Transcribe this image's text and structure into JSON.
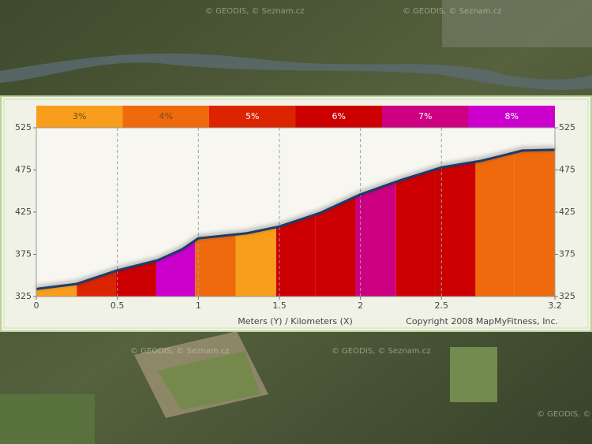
{
  "chart_data": {
    "type": "elevation-profile",
    "x": [
      0,
      0.25,
      0.5,
      0.75,
      0.9,
      1.0,
      1.15,
      1.3,
      1.5,
      1.75,
      2.0,
      2.25,
      2.5,
      2.75,
      3.0,
      3.2
    ],
    "values": [
      334,
      340,
      356,
      368,
      381,
      394,
      397,
      400,
      408,
      424,
      446,
      463,
      478,
      486,
      498,
      499
    ],
    "line_color": "#1b3d6e",
    "grades": [
      {
        "value": 3,
        "label": "3%",
        "color": "#f99d1c"
      },
      {
        "value": 4,
        "label": "4%",
        "color": "#ee6a0c"
      },
      {
        "value": 5,
        "label": "5%",
        "color": "#dd2400"
      },
      {
        "value": 6,
        "label": "6%",
        "color": "#cc0000"
      },
      {
        "value": 7,
        "label": "7%",
        "color": "#cc0080"
      },
      {
        "value": 8,
        "label": "8%",
        "color": "#cc00cc"
      }
    ],
    "segment_edges": [
      0,
      0.25,
      0.49,
      0.74,
      0.98,
      1.23,
      1.48,
      1.72,
      1.97,
      2.22,
      2.46,
      2.71,
      2.95,
      3.2
    ],
    "segment_grades": [
      3,
      5,
      6,
      8,
      4,
      3,
      6,
      6,
      7,
      6,
      6,
      4,
      4
    ],
    "xlim": [
      0,
      3.2
    ],
    "xticks": [
      0,
      0.5,
      1,
      1.5,
      2,
      2.5,
      3.2
    ],
    "ylim": [
      325,
      525
    ],
    "yticks": [
      325,
      375,
      425,
      475,
      525
    ],
    "grid": true,
    "axis_label": "Meters (Y) / Kilometers (X)",
    "copyright": "Copyright 2008 MapMyFitness, Inc."
  },
  "map": {
    "watermark": "© GEODIS, © Seznam.cz"
  }
}
